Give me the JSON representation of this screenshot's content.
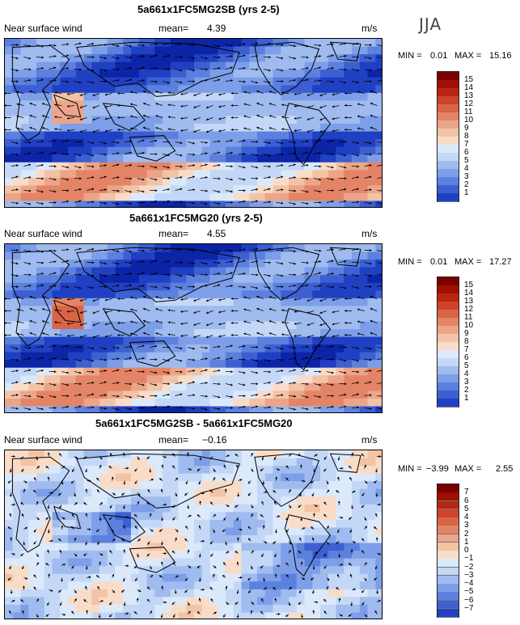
{
  "season": "JJA",
  "colors": {
    "pos": [
      "#f9dcc8",
      "#f3c3a6",
      "#eca588",
      "#e48466",
      "#da6447",
      "#cd4429",
      "#ba2512",
      "#9e1003",
      "#7d0000"
    ],
    "neg": [
      "#dbe9fb",
      "#c3d7f7",
      "#9fbbef",
      "#7d9ee8",
      "#5b80de",
      "#3c5fd2",
      "#2040c3",
      "#0c24a6",
      "#00137c"
    ]
  },
  "panels": [
    {
      "title": "5a661x1FC5MG2SB (yrs 2-5)",
      "variable": "Near surface wind",
      "mean_label": "mean=",
      "mean": "4.39",
      "units": "m/s",
      "min_label": "MIN =",
      "min": "0.01",
      "max_label": "MAX =",
      "max": "15.16",
      "colorbar_labels": [
        "15",
        "14",
        "13",
        "12",
        "11",
        "10",
        "9",
        "8",
        "7",
        "6",
        "5",
        "4",
        "3",
        "2",
        "1"
      ]
    },
    {
      "title": "5a661x1FC5MG20 (yrs 2-5)",
      "variable": "Near surface wind",
      "mean_label": "mean=",
      "mean": "4.55",
      "units": "m/s",
      "min_label": "MIN =",
      "min": "0.01",
      "max_label": "MAX =",
      "max": "17.27",
      "colorbar_labels": [
        "15",
        "14",
        "13",
        "12",
        "11",
        "10",
        "9",
        "8",
        "7",
        "6",
        "5",
        "4",
        "3",
        "2",
        "1"
      ]
    },
    {
      "title": "5a661x1FC5MG2SB - 5a661x1FC5MG20",
      "variable": "Near surface wind",
      "mean_label": "mean=",
      "mean": "−0.16",
      "units": "m/s",
      "min_label": "MIN =",
      "min": "−3.99",
      "max_label": "MAX =",
      "max": "2.55",
      "colorbar_labels": [
        "7",
        "6",
        "5",
        "4",
        "3",
        "2",
        "1",
        "0",
        "−1",
        "−2",
        "−3",
        "−4",
        "−5",
        "−6",
        "−7"
      ]
    }
  ],
  "chart_data": [
    {
      "type": "heatmap",
      "title": "5a661x1FC5MG2SB (yrs 2-5)",
      "variable": "Near surface wind",
      "units": "m/s",
      "mean": 4.39,
      "min": 0.01,
      "max": 15.16,
      "colorbar_levels": [
        1,
        2,
        3,
        4,
        5,
        6,
        7,
        8,
        9,
        10,
        11,
        12,
        13,
        14,
        15
      ]
    },
    {
      "type": "heatmap",
      "title": "5a661x1FC5MG20 (yrs 2-5)",
      "variable": "Near surface wind",
      "units": "m/s",
      "mean": 4.55,
      "min": 0.01,
      "max": 17.27,
      "colorbar_levels": [
        1,
        2,
        3,
        4,
        5,
        6,
        7,
        8,
        9,
        10,
        11,
        12,
        13,
        14,
        15
      ]
    },
    {
      "type": "heatmap",
      "title": "5a661x1FC5MG2SB - 5a661x1FC5MG20",
      "variable": "Near surface wind",
      "units": "m/s",
      "mean": -0.16,
      "min": -3.99,
      "max": 2.55,
      "colorbar_levels": [
        -7,
        -6,
        -5,
        -4,
        -3,
        -2,
        -1,
        0,
        1,
        2,
        3,
        4,
        5,
        6,
        7
      ]
    }
  ]
}
